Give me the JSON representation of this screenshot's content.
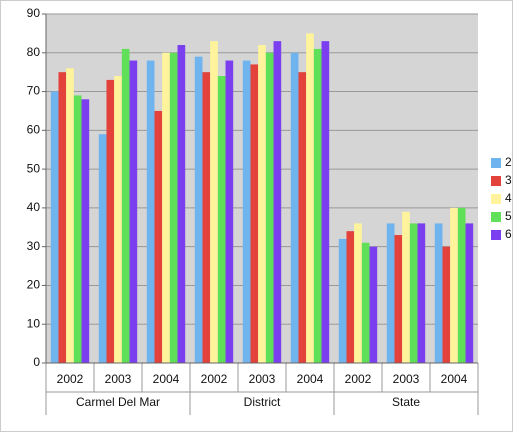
{
  "chart_data": {
    "type": "bar",
    "categories": [
      "2002",
      "2003",
      "2004",
      "2002",
      "2003",
      "2004",
      "2002",
      "2003",
      "2004"
    ],
    "category_groups": [
      "Carmel Del Mar",
      "District",
      "State"
    ],
    "series": [
      {
        "name": "2",
        "color": "#6fb4ef",
        "values": [
          70,
          59,
          78,
          79,
          78,
          80,
          32,
          36,
          36
        ]
      },
      {
        "name": "3",
        "color": "#e2423a",
        "values": [
          75,
          73,
          65,
          75,
          77,
          75,
          34,
          33,
          30
        ]
      },
      {
        "name": "4",
        "color": "#fff49c",
        "values": [
          76,
          74,
          80,
          83,
          82,
          85,
          36,
          39,
          40
        ]
      },
      {
        "name": "5",
        "color": "#5fe058",
        "values": [
          69,
          81,
          80,
          74,
          80,
          81,
          31,
          36,
          40
        ]
      },
      {
        "name": "6",
        "color": "#7b3ff0",
        "values": [
          68,
          78,
          82,
          78,
          83,
          83,
          30,
          36,
          36
        ]
      }
    ],
    "ylim": [
      0,
      90
    ],
    "yticks": [
      0,
      10,
      20,
      30,
      40,
      50,
      60,
      70,
      80,
      90
    ],
    "grid": true,
    "legend": "right"
  }
}
